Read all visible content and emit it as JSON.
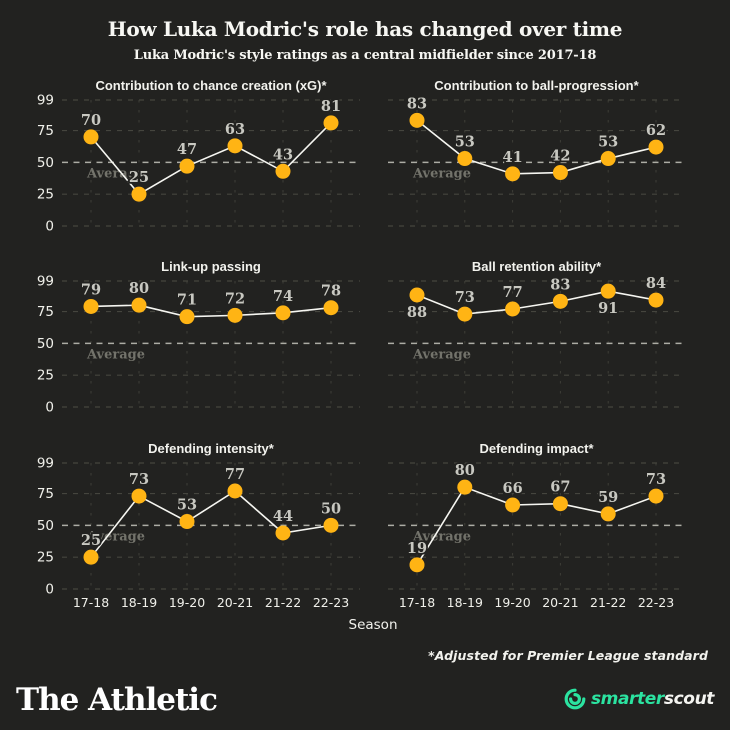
{
  "header": {
    "title": "How Luka Modric's role has changed over time",
    "subtitle": "Luka Modric's style ratings as a central midfielder since 2017-18"
  },
  "footnote": "*Adjusted for Premier League standard",
  "branding": {
    "publisher": "The Athletic",
    "provider": {
      "part1": "smarter",
      "part2": "scout"
    }
  },
  "colors": {
    "background": "#222220",
    "point": "#ffb414",
    "line": "#f6f6f1",
    "grid_horizontal": "#45453e",
    "grid_vertical": "#3e3e37",
    "average_line": "#adada5",
    "value_label": "#c8c8c1",
    "average_text": "#73736b",
    "tick_text": "#f0f0ea",
    "title_text": "#f2f2ed",
    "brand_green": "#2be3a0"
  },
  "chart_data": {
    "type": "line",
    "categories": [
      "17-18",
      "18-19",
      "19-20",
      "20-21",
      "21-22",
      "22-23"
    ],
    "xlabel": "Season",
    "ylim": [
      0,
      99
    ],
    "yticks": [
      0,
      25,
      50,
      75,
      99
    ],
    "grid": true,
    "legend": "none",
    "average": {
      "value": 50,
      "label": "Average"
    },
    "series": [
      {
        "name": "Contribution to chance creation (xG)*",
        "values": [
          70,
          25,
          47,
          63,
          43,
          81
        ],
        "label_below": []
      },
      {
        "name": "Contribution to ball-progression*",
        "values": [
          83,
          53,
          41,
          42,
          53,
          62
        ],
        "label_below": []
      },
      {
        "name": "Link-up passing",
        "values": [
          79,
          80,
          71,
          72,
          74,
          78
        ],
        "label_below": []
      },
      {
        "name": "Ball retention ability*",
        "values": [
          88,
          73,
          77,
          83,
          91,
          84
        ],
        "label_below": [
          0,
          4
        ]
      },
      {
        "name": "Defending intensity*",
        "values": [
          25,
          73,
          53,
          77,
          44,
          50
        ],
        "label_below": []
      },
      {
        "name": "Defending impact*",
        "values": [
          19,
          80,
          66,
          67,
          59,
          73
        ],
        "label_below": []
      }
    ]
  }
}
